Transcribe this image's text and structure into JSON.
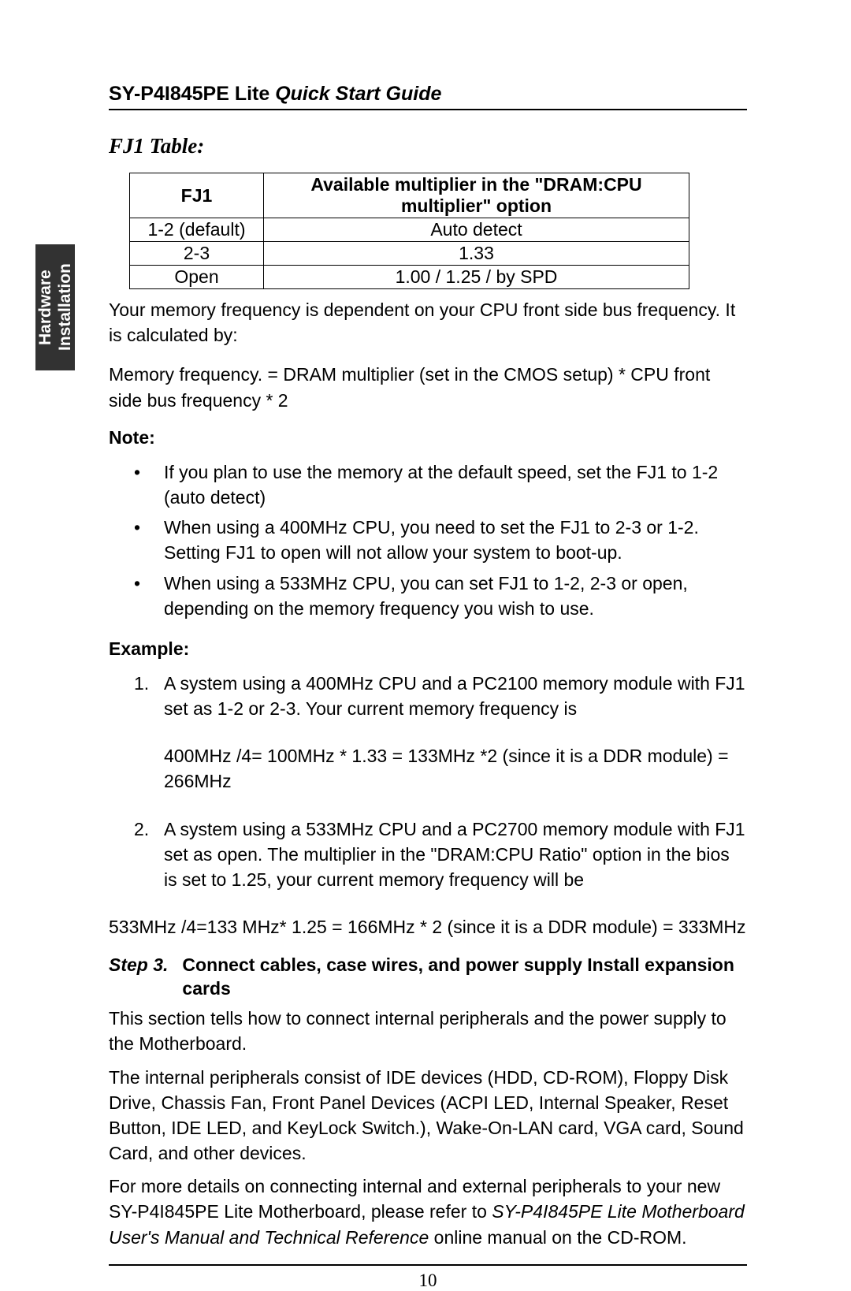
{
  "sidebar": {
    "label": "Hardware\nInstallation"
  },
  "header": {
    "bold": "SY-P4I845PE Lite ",
    "italic": "Quick Start Guide"
  },
  "section_title": "FJ1 Table:",
  "table": {
    "col1_header": "FJ1",
    "col2_header": "Available multiplier in the \"DRAM:CPU multiplier\" option",
    "rows": [
      {
        "c1": "1-2 (default)",
        "c2": "Auto detect"
      },
      {
        "c1": "2-3",
        "c2": "1.33"
      },
      {
        "c1": "Open",
        "c2": "1.00 / 1.25 / by SPD"
      }
    ]
  },
  "para1": "Your memory frequency is dependent on your CPU front side bus frequency. It is calculated by:",
  "para2": "Memory frequency. = DRAM multiplier (set in the CMOS setup) * CPU front side bus frequency * 2",
  "note_label": "Note:",
  "notes": [
    "If you plan to use the memory at the default speed, set the FJ1 to 1-2 (auto detect)",
    "When using a 400MHz CPU, you need to set the FJ1 to 2-3 or 1-2. Setting FJ1 to open will not allow your system to boot-up.",
    "When using a 533MHz CPU, you can set FJ1 to 1-2, 2-3 or open, depending on the memory frequency you wish to use."
  ],
  "example_label": "Example:",
  "examples": [
    {
      "num": "1.",
      "text": "A system using a 400MHz CPU and a PC2100 memory module with FJ1 set as 1-2 or 2-3.  Your current memory frequency is",
      "calc": "400MHz /4= 100MHz * 1.33 = 133MHz *2 (since it is a DDR module) = 266MHz"
    },
    {
      "num": "2.",
      "text": "A system using a 533MHz CPU and a PC2700 memory module with FJ1 set as open. The multiplier in the \"DRAM:CPU Ratio\" option in the bios is set to 1.25, your current memory frequency will be",
      "calc": ""
    }
  ],
  "calc_final": "533MHz /4=133 MHz* 1.25 = 166MHz * 2 (since it is a DDR module) = 333MHz",
  "step": {
    "label": "Step 3.",
    "text": "Connect cables, case wires, and power supply Install expansion cards"
  },
  "para3": "This section tells how to connect internal peripherals and the power supply to the Motherboard.",
  "para4": "The internal peripherals consist of IDE devices (HDD, CD-ROM), Floppy Disk Drive, Chassis Fan, Front Panel Devices (ACPI LED, Internal Speaker, Reset Button, IDE LED, and KeyLock Switch.), Wake-On-LAN card, VGA card, Sound Card, and other devices.",
  "para5_a": "For more details on connecting internal and external peripherals to your new SY-P4I845PE Lite Motherboard, please refer to ",
  "para5_b": "SY-P4I845PE Lite Motherboard User's Manual and Technical Reference",
  "para5_c": " online manual on the CD-ROM.",
  "page_number": "10"
}
